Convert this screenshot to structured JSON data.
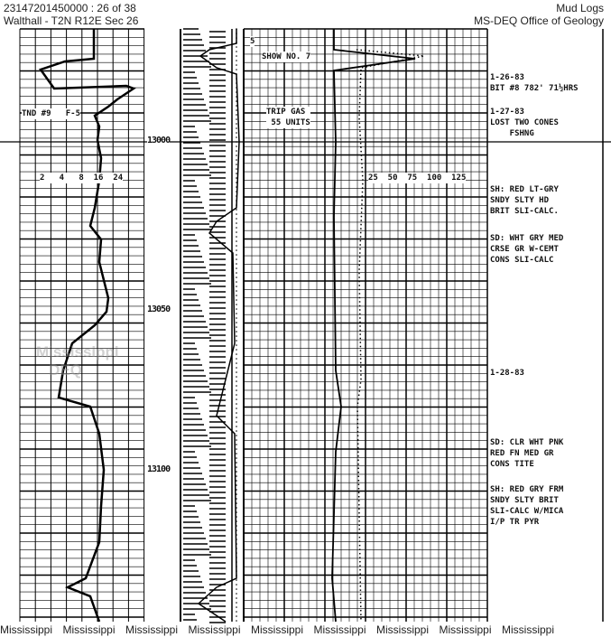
{
  "header": {
    "doc_id": "23147201450000 : 26 of 38",
    "location": "Walthall - T2N R12E Sec 26",
    "category": "Mud Logs",
    "agency": "MS-DEQ Office of Geology"
  },
  "depths": [
    "13000",
    "13050",
    "13100"
  ],
  "left_track": {
    "scale_labels": "2   4   8  16  24",
    "note": "TND #9   F-5"
  },
  "gas_track": {
    "show": "SHOW NO. 7",
    "trip_gas": "TRIP GAS\n 55 UNITS",
    "scale_labels": "25  50  75  100  125",
    "top_marker": "5"
  },
  "remarks": [
    "1-26-83\nBIT #8 782' 71½HRS",
    "1-27-83\nLOST TWO CONES\n    FSHNG",
    "SH: RED LT-GRY\nSNDY SLTY HD\nBRIT SLI-CALC.",
    "SD: WHT GRY MED\nCRSE GR W-CEMT\nCONS SLI-CALC",
    "1-28-83",
    "SD: CLR WHT PNK\nRED FN MED GR\nCONS TITE",
    "SH: RED GRY FRM\nSNDY SLTY BRIT\nSLI-CALC W/MICA\nI/P TR PYR"
  ],
  "watermark": "Mississippi DEQ",
  "footer": [
    "Mississippi",
    "Mississippi",
    "Mississippi",
    "Mississippi",
    "Mississippi",
    "Mississippi",
    "Mississippi",
    "Mississippi",
    "Mississippi"
  ]
}
